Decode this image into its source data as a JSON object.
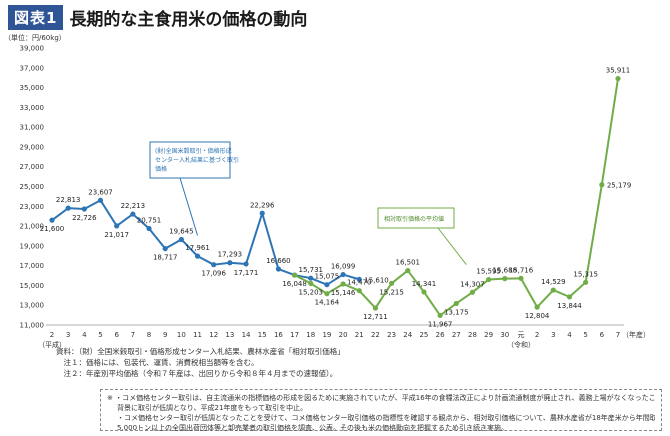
{
  "header": {
    "badge": "図表1",
    "title": "長期的な主食用米の価格の動向"
  },
  "colors": {
    "blue": "#2e75b6",
    "green": "#70ad47",
    "badge": "#2f5597"
  },
  "chart_data": {
    "type": "line",
    "unit_label": "（単位：円/60kg）",
    "ylim": [
      11000,
      39000
    ],
    "yticks": [
      "11,000",
      "13,000",
      "15,000",
      "17,000",
      "19,000",
      "21,000",
      "23,000",
      "25,000",
      "27,000",
      "29,000",
      "31,000",
      "33,000",
      "35,000",
      "37,000",
      "39,000"
    ],
    "xticks": [
      "2",
      "3",
      "4",
      "5",
      "6",
      "7",
      "8",
      "9",
      "10",
      "11",
      "12",
      "13",
      "14",
      "15",
      "16",
      "17",
      "18",
      "19",
      "20",
      "21",
      "22",
      "23",
      "24",
      "25",
      "26",
      "27",
      "28",
      "29",
      "30",
      "元",
      "2",
      "3",
      "4",
      "5",
      "6",
      "7"
    ],
    "x_sublabels": [
      {
        "index": 0,
        "text": "（平成）"
      },
      {
        "index": 29,
        "text": "（令和）"
      }
    ],
    "x_end_label": "（年産）",
    "series": [
      {
        "color": "#2e75b6",
        "start_index": 0,
        "values": [
          21600,
          22813,
          22726,
          23607,
          21017,
          22213,
          20751,
          18717,
          19645,
          17961,
          17096,
          17293,
          17171,
          22296,
          16660,
          16048,
          15731,
          15075,
          16099,
          15610
        ],
        "labels": [
          "21,600",
          "22,813",
          "22,726",
          "23,607",
          "21,017",
          "22,213",
          "20,751",
          "18,717",
          "19,645",
          "17,961",
          "17,096",
          "17,293",
          "17,171",
          "22,296",
          "16,660",
          "16,048",
          "15,731",
          "15,075",
          "16,099",
          "15,610"
        ],
        "label_pos": [
          "b",
          "t",
          "b",
          "t",
          "b",
          "t",
          "t",
          "b",
          "t",
          "t",
          "b",
          "t",
          "b",
          "t",
          "t",
          "b",
          "t",
          "t",
          "t",
          "r"
        ]
      },
      {
        "color": "#70ad47",
        "start_index": 15,
        "values": [
          16048,
          15203,
          14164,
          15146,
          14470,
          12711,
          15215,
          16501,
          14341,
          11967,
          13175,
          14307,
          15595,
          15688,
          15716,
          12804,
          14529,
          13844,
          15315,
          25179,
          35911
        ],
        "labels": [
          "",
          "15,203",
          "14,164",
          "15,146",
          "14,470",
          "12,711",
          "15,215",
          "16,501",
          "14,341",
          "11,967",
          "13,175",
          "14,307",
          "15,595",
          "15,688",
          "15,716",
          "12,804",
          "14,529",
          "13,844",
          "15,315",
          "25,179",
          "35,911"
        ],
        "label_pos": [
          "n",
          "b",
          "b",
          "b",
          "t",
          "b",
          "b",
          "t",
          "t",
          "b",
          "b",
          "t",
          "t",
          "t",
          "t",
          "b",
          "t",
          "b",
          "t",
          "r",
          "t"
        ]
      }
    ],
    "annotations": [
      {
        "series": 0,
        "lines": [
          "(財)全国米穀取引・価格形成",
          "センター入札結果に基づく取引",
          "価格"
        ]
      },
      {
        "series": 1,
        "lines": [
          "相対取引価格の平均値"
        ]
      }
    ]
  },
  "notes": [
    "資料：（財）全国米穀取引・価格形成センター入札結果、農林水産省「相対取引価格」",
    "　注１：価格には、包装代、運賃、消費税相当額等を含む。",
    "　注２：年産別平均価格（令和７年産は、出回りから令和８年４月までの速報値）。"
  ],
  "footnotes": [
    "※ ・コメ価格センター取引は、自主流通米の指標価格の形成を図るために実施されていたが、平成16年の食糧法改正により計画流通制度が廃止され、義務上場がなくなったこと等を",
    "背景に取引が低調となり、平成21年度をもって取引を中止。",
    "・コメ価格センター取引が低調となったことを受けて、コメ価格センター取引価格の指標性を確認する観点から、相対取引価格について、農林水産省が18年産米から年間取扱数量",
    "5,000トン以上の全国出荷団体等と卸売業者の取引価格を調査、公表。その後も米の価格動向を把握するため引き続き実施。"
  ]
}
